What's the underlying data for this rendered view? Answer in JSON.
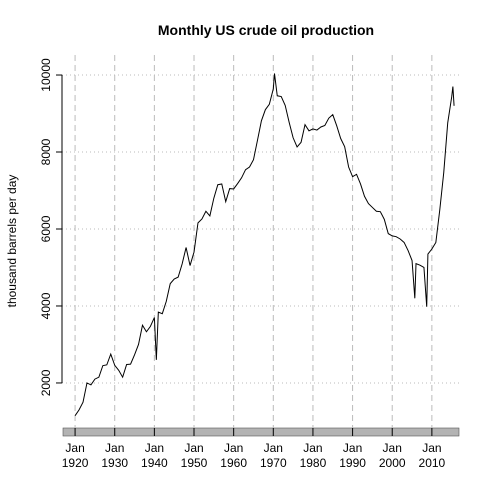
{
  "chart_data": {
    "type": "line",
    "title": "Monthly US crude oil production",
    "ylabel": "thousand barrels per day",
    "color": "#000000",
    "x": [
      1920,
      1921,
      1922,
      1923,
      1924,
      1925,
      1926,
      1927,
      1928,
      1929,
      1930,
      1931,
      1932,
      1933,
      1934,
      1935,
      1936,
      1937,
      1938,
      1939,
      1940,
      1940.5,
      1941,
      1942,
      1943,
      1944,
      1945,
      1946,
      1947,
      1948,
      1949,
      1950,
      1951,
      1952,
      1953,
      1954,
      1955,
      1956,
      1957,
      1958,
      1959,
      1960,
      1961,
      1962,
      1963,
      1964,
      1965,
      1966,
      1967,
      1968,
      1969,
      1970,
      1970.3,
      1971,
      1972,
      1973,
      1974,
      1975,
      1976,
      1977,
      1978,
      1979,
      1980,
      1981,
      1982,
      1983,
      1984,
      1985,
      1986,
      1987,
      1988,
      1989,
      1990,
      1991,
      1992,
      1993,
      1994,
      1995,
      1996,
      1997,
      1998,
      1999,
      2000,
      2001,
      2002,
      2003,
      2004,
      2005,
      2005.7,
      2006,
      2007,
      2008,
      2008.7,
      2009,
      2010,
      2011,
      2012,
      2013,
      2014,
      2015,
      2015.3,
      2015.6
    ],
    "values": [
      1150,
      1300,
      1500,
      2000,
      1950,
      2100,
      2150,
      2450,
      2470,
      2750,
      2460,
      2330,
      2150,
      2480,
      2490,
      2730,
      3000,
      3500,
      3330,
      3470,
      3700,
      2600,
      3840,
      3800,
      4120,
      4580,
      4700,
      4750,
      5090,
      5520,
      5050,
      5400,
      6160,
      6260,
      6460,
      6340,
      6800,
      7150,
      7170,
      6710,
      7050,
      7040,
      7180,
      7330,
      7540,
      7610,
      7800,
      8300,
      8810,
      9100,
      9240,
      9640,
      10040,
      9460,
      9440,
      9210,
      8770,
      8370,
      8130,
      8250,
      8710,
      8550,
      8600,
      8570,
      8650,
      8690,
      8880,
      8970,
      8680,
      8350,
      8140,
      7610,
      7360,
      7420,
      7170,
      6850,
      6660,
      6560,
      6460,
      6450,
      6250,
      5880,
      5820,
      5800,
      5740,
      5650,
      5440,
      5180,
      4200,
      5100,
      5060,
      5000,
      3980,
      5350,
      5480,
      5650,
      6500,
      7470,
      8760,
      9430,
      9700,
      9200
    ],
    "xlim": [
      1916.7,
      2017.6
    ],
    "ylim": [
      830,
      10520
    ],
    "xticks": [
      {
        "value": 1920,
        "label": "Jan 1920"
      },
      {
        "value": 1930,
        "label": "Jan 1930"
      },
      {
        "value": 1940,
        "label": "Jan 1940"
      },
      {
        "value": 1950,
        "label": "Jan 1950"
      },
      {
        "value": 1960,
        "label": "Jan 1960"
      },
      {
        "value": 1970,
        "label": "Jan 1970"
      },
      {
        "value": 1980,
        "label": "Jan 1980"
      },
      {
        "value": 1990,
        "label": "Jan 1990"
      },
      {
        "value": 2000,
        "label": "Jan 2000"
      },
      {
        "value": 2010,
        "label": "Jan 2010"
      }
    ],
    "yticks": [
      2000,
      4000,
      6000,
      8000,
      10000
    ],
    "grid": true
  }
}
